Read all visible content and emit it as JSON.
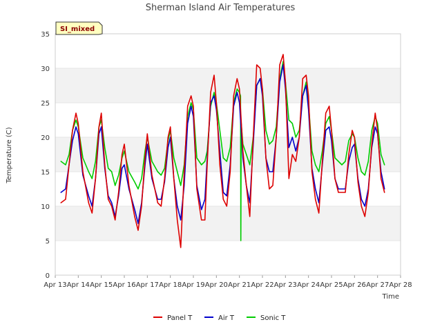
{
  "chart_data": {
    "type": "line",
    "title": "Sherman Island Air Temperatures",
    "xlabel": "Time",
    "ylabel": "Temperature (C)",
    "ylim": [
      0,
      35
    ],
    "yticks": [
      0,
      5,
      10,
      15,
      20,
      25,
      30,
      35
    ],
    "xlim": [
      13,
      28
    ],
    "xtick_labels": [
      "Apr 13",
      "Apr 14",
      "Apr 15",
      "Apr 16",
      "Apr 17",
      "Apr 18",
      "Apr 19",
      "Apr 20",
      "Apr 21",
      "Apr 22",
      "Apr 23",
      "Apr 24",
      "Apr 25",
      "Apr 26",
      "Apr 27",
      "Apr 28"
    ],
    "x_unit": "day of April",
    "grid": "horizontal bands",
    "legend_position": "bottom",
    "annotation": "SI_mixed",
    "series": [
      {
        "name": "Panel T",
        "color": "#dd0000",
        "x": [
          13.25,
          13.45,
          13.6,
          13.75,
          13.9,
          14.0,
          14.2,
          14.45,
          14.6,
          14.75,
          14.9,
          15.0,
          15.15,
          15.3,
          15.45,
          15.6,
          15.75,
          15.9,
          16.0,
          16.2,
          16.45,
          16.6,
          16.75,
          16.9,
          17.0,
          17.2,
          17.45,
          17.6,
          17.75,
          17.9,
          18.0,
          18.15,
          18.3,
          18.45,
          18.6,
          18.75,
          18.9,
          19.0,
          19.15,
          19.35,
          19.5,
          19.6,
          19.75,
          19.9,
          20.0,
          20.15,
          20.3,
          20.45,
          20.6,
          20.75,
          20.9,
          21.0,
          21.15,
          21.3,
          21.45,
          21.6,
          21.75,
          21.9,
          22.0,
          22.15,
          22.3,
          22.45,
          22.6,
          22.75,
          22.9,
          23.0,
          23.15,
          23.3,
          23.45,
          23.6,
          23.75,
          23.9,
          24.0,
          24.15,
          24.3,
          24.45,
          24.6,
          24.75,
          24.9,
          25.0,
          25.15,
          25.3,
          25.45,
          25.6,
          25.75,
          25.9,
          26.0,
          26.15,
          26.3,
          26.45,
          26.6,
          26.75,
          26.9,
          27.0,
          27.15,
          27.3
        ],
        "y": [
          10.5,
          11.0,
          16.0,
          21.0,
          23.5,
          22.0,
          15.0,
          10.5,
          9.0,
          14.0,
          21.5,
          23.5,
          16.0,
          11.0,
          10.0,
          8.0,
          12.0,
          17.5,
          19.0,
          13.0,
          8.5,
          6.5,
          10.0,
          17.0,
          20.5,
          14.5,
          10.5,
          10.0,
          14.0,
          20.0,
          21.5,
          14.0,
          8.0,
          4.0,
          15.0,
          24.5,
          26.0,
          24.5,
          12.5,
          8.0,
          8.0,
          16.0,
          26.5,
          29.0,
          25.0,
          16.0,
          11.0,
          10.0,
          15.0,
          26.0,
          28.5,
          27.0,
          18.0,
          13.0,
          8.5,
          20.0,
          30.5,
          30.0,
          27.0,
          17.0,
          12.5,
          13.0,
          20.0,
          30.5,
          32.0,
          28.0,
          14.0,
          17.5,
          16.5,
          20.0,
          28.5,
          29.0,
          26.0,
          15.0,
          11.0,
          9.0,
          16.5,
          23.5,
          24.5,
          21.0,
          14.0,
          12.0,
          12.0,
          12.0,
          17.5,
          21.0,
          20.0,
          13.5,
          10.0,
          8.5,
          12.0,
          19.0,
          23.5,
          21.0,
          14.0,
          12.0
        ]
      },
      {
        "name": "Air T",
        "color": "#0000cc",
        "x": [
          13.25,
          13.45,
          13.6,
          13.75,
          13.9,
          14.0,
          14.2,
          14.45,
          14.6,
          14.75,
          14.9,
          15.0,
          15.15,
          15.3,
          15.45,
          15.6,
          15.75,
          15.9,
          16.0,
          16.2,
          16.45,
          16.6,
          16.75,
          16.9,
          17.0,
          17.2,
          17.45,
          17.6,
          17.75,
          17.9,
          18.0,
          18.15,
          18.3,
          18.45,
          18.6,
          18.75,
          18.9,
          19.0,
          19.15,
          19.35,
          19.5,
          19.6,
          19.75,
          19.9,
          20.0,
          20.15,
          20.3,
          20.45,
          20.6,
          20.75,
          20.9,
          21.0,
          21.15,
          21.3,
          21.45,
          21.6,
          21.75,
          21.9,
          22.0,
          22.15,
          22.3,
          22.45,
          22.6,
          22.75,
          22.9,
          23.0,
          23.15,
          23.3,
          23.45,
          23.6,
          23.75,
          23.9,
          24.0,
          24.15,
          24.3,
          24.45,
          24.6,
          24.75,
          24.9,
          25.0,
          25.15,
          25.3,
          25.45,
          25.6,
          25.75,
          25.9,
          26.0,
          26.15,
          26.3,
          26.45,
          26.6,
          26.75,
          26.9,
          27.0,
          27.15,
          27.3
        ],
        "y": [
          12.0,
          12.5,
          16.0,
          19.5,
          21.5,
          20.5,
          14.5,
          11.5,
          10.0,
          14.0,
          20.5,
          21.5,
          15.5,
          11.5,
          10.5,
          8.5,
          11.5,
          15.5,
          16.0,
          12.5,
          9.5,
          7.5,
          10.5,
          16.0,
          19.0,
          14.0,
          11.0,
          11.0,
          13.5,
          18.5,
          20.0,
          14.0,
          10.0,
          8.0,
          13.0,
          22.0,
          24.5,
          23.0,
          13.0,
          9.5,
          11.0,
          17.0,
          25.0,
          26.0,
          24.0,
          18.0,
          12.0,
          11.5,
          16.0,
          24.5,
          26.5,
          25.0,
          17.0,
          13.0,
          10.5,
          19.0,
          27.5,
          28.5,
          26.0,
          17.0,
          15.0,
          15.0,
          20.0,
          28.0,
          30.5,
          27.0,
          18.5,
          20.0,
          18.0,
          20.0,
          26.0,
          27.5,
          24.0,
          15.5,
          12.5,
          10.5,
          16.0,
          21.0,
          21.5,
          19.5,
          14.0,
          12.5,
          12.5,
          12.5,
          16.5,
          18.5,
          19.0,
          14.0,
          11.0,
          10.0,
          12.5,
          18.5,
          21.5,
          20.5,
          15.0,
          12.5
        ]
      },
      {
        "name": "Sonic T",
        "color": "#00cc00",
        "x": [
          13.25,
          13.45,
          13.6,
          13.75,
          13.9,
          14.0,
          14.2,
          14.45,
          14.6,
          14.75,
          14.9,
          15.0,
          15.15,
          15.3,
          15.45,
          15.6,
          15.75,
          15.9,
          16.0,
          16.2,
          16.45,
          16.6,
          16.75,
          16.9,
          17.0,
          17.2,
          17.45,
          17.6,
          17.75,
          17.9,
          18.0,
          18.15,
          18.3,
          18.45,
          18.6,
          18.75,
          18.9,
          19.0,
          19.15,
          19.35,
          19.5,
          19.6,
          19.75,
          19.9,
          20.0,
          20.15,
          20.3,
          20.45,
          20.6,
          20.75,
          20.9,
          21.0,
          21.05,
          21.06,
          21.08,
          21.15,
          21.3,
          21.45,
          21.6,
          21.75,
          21.9,
          22.0,
          22.15,
          22.3,
          22.45,
          22.6,
          22.75,
          22.9,
          23.0,
          23.15,
          23.3,
          23.45,
          23.6,
          23.75,
          23.9,
          24.0,
          24.15,
          24.3,
          24.45,
          24.6,
          24.75,
          24.9,
          25.0,
          25.15,
          25.3,
          25.45,
          25.6,
          25.75,
          25.9,
          26.0,
          26.15,
          26.3,
          26.45,
          26.6,
          26.75,
          26.9,
          27.0,
          27.15,
          27.3
        ],
        "y": [
          16.5,
          16.0,
          17.5,
          21.0,
          22.5,
          21.5,
          17.0,
          15.0,
          14.0,
          16.5,
          21.5,
          22.5,
          18.5,
          15.5,
          15.0,
          13.0,
          14.5,
          17.0,
          18.0,
          15.0,
          13.5,
          12.5,
          14.0,
          18.0,
          20.0,
          16.5,
          15.0,
          14.5,
          15.5,
          19.5,
          21.0,
          17.0,
          15.0,
          13.0,
          16.0,
          23.0,
          25.0,
          24.0,
          17.0,
          16.0,
          16.5,
          18.0,
          24.5,
          26.5,
          25.0,
          21.0,
          17.0,
          16.5,
          18.5,
          25.0,
          27.0,
          26.5,
          26.0,
          5.0,
          22.0,
          19.0,
          17.5,
          16.0,
          20.0,
          27.5,
          28.5,
          27.0,
          21.0,
          19.0,
          19.5,
          21.5,
          28.5,
          31.0,
          28.0,
          22.5,
          22.0,
          20.0,
          21.0,
          26.0,
          28.0,
          25.0,
          18.0,
          16.0,
          15.0,
          18.0,
          22.0,
          23.0,
          21.0,
          17.0,
          16.5,
          16.0,
          16.5,
          19.5,
          20.5,
          20.0,
          17.0,
          15.0,
          14.5,
          16.5,
          21.0,
          23.0,
          22.0,
          17.5,
          16.0
        ]
      }
    ]
  }
}
